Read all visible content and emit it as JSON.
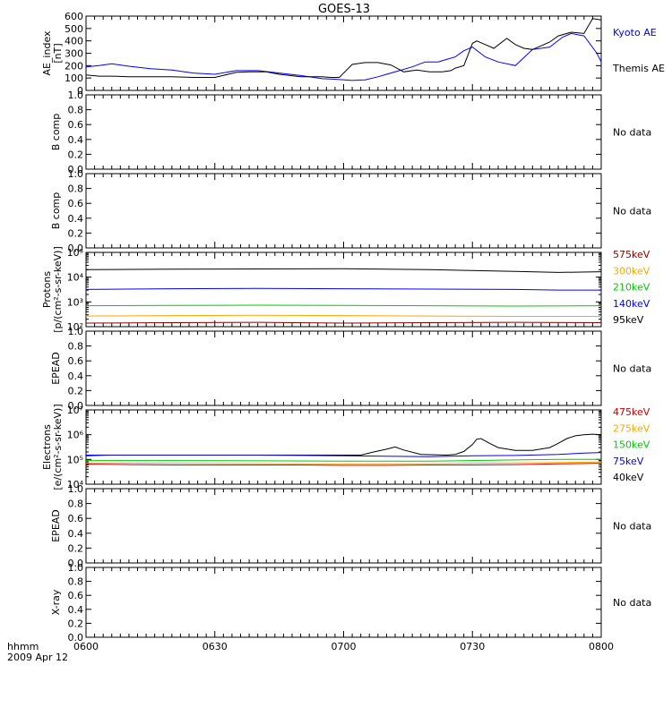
{
  "title": "GOES-13",
  "time_axis": {
    "ticks": [
      "0600",
      "0630",
      "0700",
      "0730",
      "0800"
    ],
    "tick_minutes": [
      0,
      30,
      60,
      90,
      120
    ],
    "range_minutes": [
      0,
      120
    ],
    "left_label": "hhmm",
    "date_label": "2009 Apr 12"
  },
  "colors": {
    "black": "#000000",
    "blue": "#0000ff",
    "green": "#00cc00",
    "orange": "#ffa500",
    "red": "#cc0000",
    "darkred": "#8b0000"
  },
  "chart_data": [
    {
      "type": "line",
      "panel": "ae",
      "ylabel": [
        "AE_index",
        "[nT]"
      ],
      "ylim": [
        0,
        600
      ],
      "yticks": [
        "0",
        "100",
        "200",
        "300",
        "400",
        "500",
        "600"
      ],
      "ytick_values": [
        0,
        100,
        200,
        300,
        400,
        500,
        600
      ],
      "legend": [
        "Kyoto AE",
        "Themis AE"
      ],
      "series": [
        {
          "name": "Kyoto AE",
          "color": "#0000ff",
          "x": [
            0,
            3,
            6,
            10,
            15,
            20,
            25,
            30,
            35,
            40,
            45,
            50,
            55,
            58,
            62,
            65,
            68,
            70,
            73,
            76,
            79,
            82,
            84,
            86,
            88,
            90,
            93,
            96,
            100,
            104,
            108,
            111,
            113,
            116,
            119,
            120
          ],
          "y": [
            190,
            200,
            215,
            195,
            175,
            165,
            140,
            130,
            160,
            160,
            140,
            120,
            95,
            90,
            80,
            85,
            110,
            130,
            160,
            190,
            230,
            230,
            250,
            270,
            320,
            350,
            270,
            230,
            200,
            330,
            350,
            430,
            460,
            440,
            300,
            230
          ]
        },
        {
          "name": "Themis AE",
          "color": "#000000",
          "x": [
            0,
            3,
            6,
            10,
            15,
            20,
            25,
            30,
            35,
            38,
            42,
            45,
            50,
            55,
            57,
            59,
            62,
            65,
            68,
            71,
            74,
            77,
            80,
            83,
            85,
            86,
            88,
            90,
            91,
            93,
            95,
            98,
            100,
            102,
            104,
            106,
            108,
            110,
            113,
            116,
            118,
            120
          ],
          "y": [
            125,
            115,
            115,
            110,
            110,
            110,
            105,
            105,
            145,
            150,
            150,
            130,
            110,
            110,
            105,
            105,
            210,
            225,
            225,
            205,
            150,
            165,
            150,
            150,
            160,
            180,
            200,
            380,
            400,
            370,
            340,
            420,
            370,
            340,
            330,
            360,
            390,
            440,
            470,
            460,
            580,
            570
          ]
        }
      ]
    },
    {
      "type": "line",
      "panel": "b1",
      "ylabel": [
        "B comp"
      ],
      "ylim": [
        0,
        1
      ],
      "yticks": [
        "0.0",
        "0.2",
        "0.4",
        "0.6",
        "0.8",
        "1.0"
      ],
      "ytick_values": [
        0,
        0.2,
        0.4,
        0.6,
        0.8,
        1.0
      ],
      "legend": [
        "No data"
      ],
      "series": []
    },
    {
      "type": "line",
      "panel": "b2",
      "ylabel": [
        "B comp"
      ],
      "ylim": [
        0,
        1
      ],
      "yticks": [
        "0.0",
        "0.2",
        "0.4",
        "0.6",
        "0.8",
        "1.0"
      ],
      "ytick_values": [
        0,
        0.2,
        0.4,
        0.6,
        0.8,
        1.0
      ],
      "legend": [
        "No data"
      ],
      "series": []
    },
    {
      "type": "line",
      "panel": "protons",
      "ylabel": [
        "Protons",
        "[p/(cm²-s-sr-keV)]"
      ],
      "ylim": [
        100,
        100000
      ],
      "log_scale": true,
      "yticks": [
        "10²",
        "10³",
        "10⁴",
        "10⁵"
      ],
      "ytick_values": [
        100,
        1000,
        10000,
        100000
      ],
      "legend": [
        "575keV",
        "300keV",
        "210keV",
        "140keV",
        "95keV"
      ],
      "series": [
        {
          "name": "95keV",
          "color": "#000000",
          "x": [
            0,
            20,
            40,
            60,
            80,
            100,
            110,
            120
          ],
          "y": [
            20000,
            21000,
            21500,
            22000,
            20000,
            17000,
            15500,
            16500
          ]
        },
        {
          "name": "140keV",
          "color": "#0000ff",
          "x": [
            0,
            20,
            40,
            60,
            80,
            100,
            110,
            120
          ],
          "y": [
            3200,
            3400,
            3500,
            3400,
            3300,
            3200,
            3000,
            3000
          ]
        },
        {
          "name": "210keV",
          "color": "#00cc00",
          "x": [
            0,
            20,
            40,
            60,
            80,
            100,
            120
          ],
          "y": [
            700,
            720,
            740,
            720,
            700,
            680,
            700
          ]
        },
        {
          "name": "300keV",
          "color": "#ffa500",
          "x": [
            0,
            20,
            40,
            60,
            80,
            100,
            120
          ],
          "y": [
            270,
            280,
            290,
            280,
            270,
            260,
            260
          ]
        },
        {
          "name": "575keV",
          "color": "#8b0000",
          "x": [
            0,
            20,
            40,
            60,
            80,
            100,
            120
          ],
          "y": [
            140,
            145,
            150,
            140,
            145,
            150,
            145
          ]
        }
      ]
    },
    {
      "type": "line",
      "panel": "epead1",
      "ylabel": [
        "EPEAD"
      ],
      "ylim": [
        0,
        1
      ],
      "yticks": [
        "0.0",
        "0.2",
        "0.4",
        "0.6",
        "0.8",
        "1.0"
      ],
      "ytick_values": [
        0,
        0.2,
        0.4,
        0.6,
        0.8,
        1.0
      ],
      "legend": [
        "No data"
      ],
      "series": []
    },
    {
      "type": "line",
      "panel": "electrons",
      "ylabel": [
        "Electrons",
        "[e/(cm²-s-sr-keV)]"
      ],
      "ylim": [
        10000,
        10000000
      ],
      "log_scale": true,
      "yticks": [
        "10⁴",
        "10⁵",
        "10⁶",
        "10⁷"
      ],
      "ytick_values": [
        10000,
        100000,
        1000000,
        10000000
      ],
      "legend": [
        "475keV",
        "275keV",
        "150keV",
        "75keV",
        "40keV"
      ],
      "series": [
        {
          "name": "40keV",
          "color": "#000000",
          "x": [
            0,
            5,
            10,
            20,
            30,
            40,
            50,
            60,
            64,
            67,
            70,
            72,
            74,
            78,
            84,
            86,
            88,
            90,
            91,
            92,
            94,
            96,
            100,
            104,
            108,
            110,
            112,
            114,
            116,
            118,
            120
          ],
          "y": [
            140000,
            150000,
            150000,
            150000,
            150000,
            150000,
            150000,
            150000,
            150000,
            200000,
            260000,
            320000,
            240000,
            160000,
            150000,
            160000,
            210000,
            400000,
            650000,
            700000,
            450000,
            300000,
            230000,
            230000,
            300000,
            450000,
            700000,
            900000,
            1000000,
            1050000,
            1000000
          ]
        },
        {
          "name": "75keV",
          "color": "#0000ff",
          "x": [
            0,
            20,
            40,
            60,
            80,
            90,
            100,
            110,
            116,
            120
          ],
          "y": [
            150000,
            150000,
            150000,
            140000,
            130000,
            140000,
            145000,
            160000,
            180000,
            190000
          ]
        },
        {
          "name": "150keV",
          "color": "#00cc00",
          "x": [
            0,
            20,
            40,
            60,
            80,
            100,
            110,
            120
          ],
          "y": [
            90000,
            90000,
            88000,
            85000,
            85000,
            95000,
            100000,
            100000
          ]
        },
        {
          "name": "275keV",
          "color": "#ffa500",
          "x": [
            0,
            20,
            40,
            60,
            80,
            100,
            110,
            120
          ],
          "y": [
            72000,
            70000,
            68000,
            66000,
            68000,
            72000,
            75000,
            78000
          ]
        },
        {
          "name": "475keV",
          "color": "#cc0000",
          "x": [
            0,
            10,
            20,
            30,
            40,
            50,
            60,
            70,
            80,
            90,
            100,
            110,
            120
          ],
          "y": [
            65000,
            62000,
            60000,
            60000,
            60000,
            60000,
            58000,
            58000,
            60000,
            60000,
            62000,
            66000,
            70000
          ]
        }
      ]
    },
    {
      "type": "line",
      "panel": "epead2",
      "ylabel": [
        "EPEAD"
      ],
      "ylim": [
        0,
        1
      ],
      "yticks": [
        "0.0",
        "0.2",
        "0.4",
        "0.6",
        "0.8",
        "1.0"
      ],
      "ytick_values": [
        0,
        0.2,
        0.4,
        0.6,
        0.8,
        1.0
      ],
      "legend": [
        "No data"
      ],
      "series": []
    },
    {
      "type": "line",
      "panel": "xray",
      "ylabel": [
        "X-ray"
      ],
      "ylim": [
        0,
        1
      ],
      "yticks": [
        "0.0",
        "0.2",
        "0.4",
        "0.6",
        "0.8",
        "1.0"
      ],
      "ytick_values": [
        0,
        0.2,
        0.4,
        0.6,
        0.8,
        1.0
      ],
      "legend": [
        "No data"
      ],
      "series": []
    }
  ]
}
